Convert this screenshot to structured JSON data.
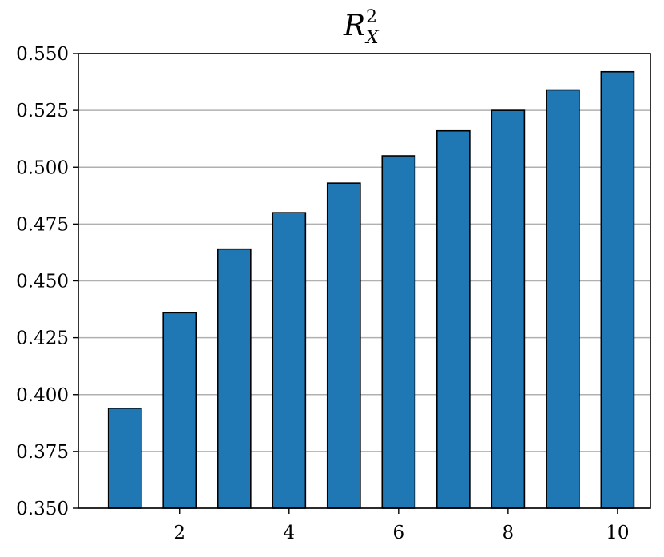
{
  "chart_data": {
    "type": "bar",
    "title": {
      "main": "R",
      "superscript": "2",
      "subscript": "X"
    },
    "xlabel": "",
    "ylabel": "",
    "x": [
      1,
      2,
      3,
      4,
      5,
      6,
      7,
      8,
      9,
      10
    ],
    "values": [
      0.394,
      0.436,
      0.464,
      0.48,
      0.493,
      0.505,
      0.516,
      0.525,
      0.534,
      0.542
    ],
    "ylim": [
      0.35,
      0.55
    ],
    "xlim": [
      0.15,
      10.6
    ],
    "yticks": [
      "0.350",
      "0.375",
      "0.400",
      "0.425",
      "0.450",
      "0.475",
      "0.500",
      "0.525",
      "0.550"
    ],
    "xticks": [
      "2",
      "4",
      "6",
      "8",
      "10"
    ],
    "grid": "y",
    "bar_color": "#1f77b4",
    "edge_color": "#000000",
    "grid_color": "#b0b0b0"
  }
}
